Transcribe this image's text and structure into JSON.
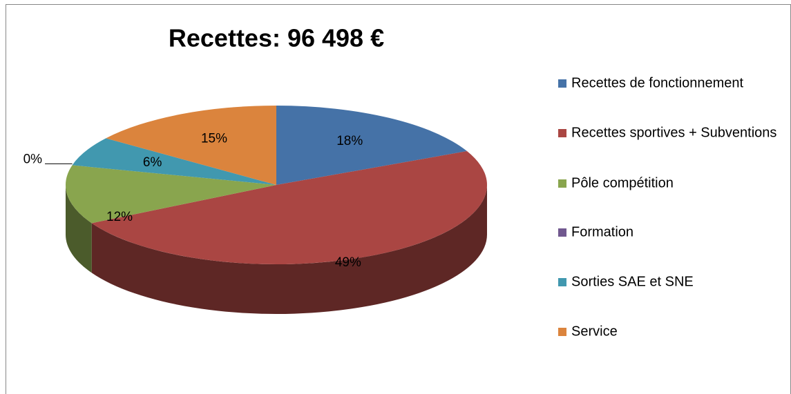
{
  "chart_data": {
    "type": "pie",
    "title": "Recettes: 96 498 €",
    "categories": [
      "Recettes de fonctionnement",
      "Recettes sportives + Subventions",
      "Pôle compétition",
      "Formation",
      "Sorties SAE et SNE",
      "Service"
    ],
    "values": [
      18,
      49,
      12,
      0,
      6,
      15
    ],
    "value_labels": [
      "18%",
      "49%",
      "12%",
      "0%",
      "6%",
      "15%"
    ],
    "colors": [
      "#4572a7",
      "#aa4643",
      "#89a54e",
      "#71588f",
      "#4198af",
      "#db843d"
    ],
    "legend": "right"
  }
}
